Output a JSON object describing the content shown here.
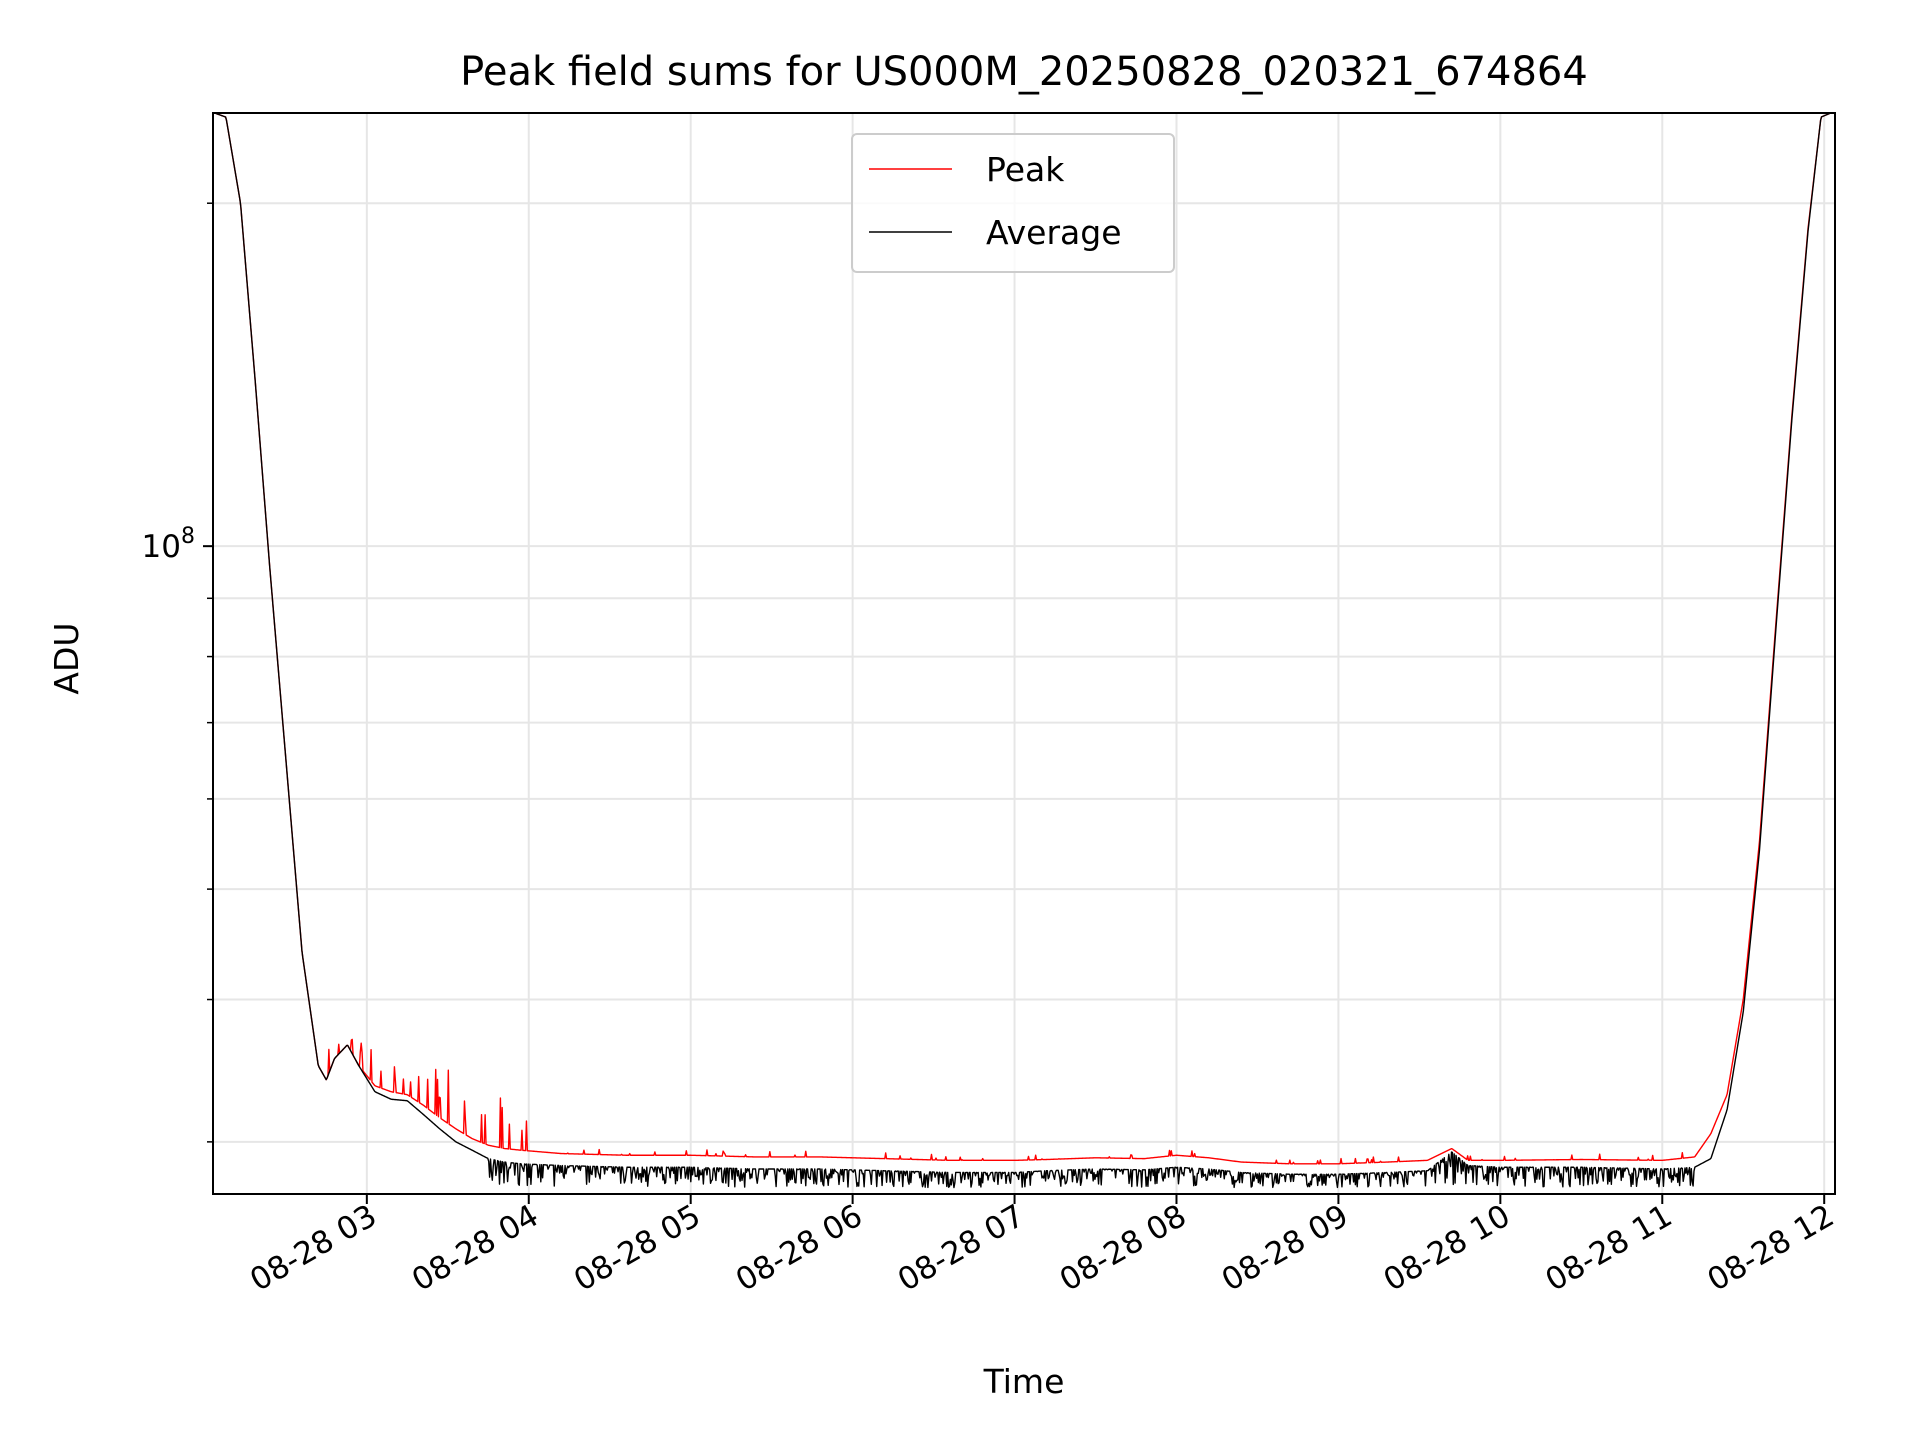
{
  "chart_data": {
    "type": "line",
    "title": "Peak field sums for US000M_20250828_020321_674864",
    "xlabel": "Time",
    "ylabel": "ADU",
    "yscale": "log",
    "y_tick_label": {
      "base": "10",
      "exp": "8"
    },
    "x_ticks": [
      "08-28 03",
      "08-28 04",
      "08-28 05",
      "08-28 06",
      "08-28 07",
      "08-28 08",
      "08-28 09",
      "08-28 10",
      "08-28 11",
      "08-28 12"
    ],
    "x_start": "2025-08-28 02:03",
    "x_end": "2025-08-28 12:02",
    "xlim": [
      "2025-08-28 02:03",
      "2025-08-28 12:04"
    ],
    "ylim": [
      27000000,
      240000000
    ],
    "grid": true,
    "legend_position": "upper center",
    "series": [
      {
        "name": "Peak",
        "color": "#ff0000",
        "x_hours": [
          2.06,
          2.13,
          2.22,
          2.31,
          2.4,
          2.5,
          2.6,
          2.7,
          2.75,
          2.8,
          2.88,
          2.95,
          3.05,
          3.15,
          3.25,
          3.35,
          3.45,
          3.55,
          3.65,
          3.75,
          3.85,
          3.95,
          4.2,
          4.6,
          5.0,
          5.4,
          5.8,
          6.2,
          6.6,
          7.0,
          7.2,
          7.5,
          7.8,
          8.0,
          8.2,
          8.4,
          8.7,
          9.0,
          9.3,
          9.55,
          9.7,
          9.8,
          10.0,
          10.5,
          11.0,
          11.2,
          11.3,
          11.4,
          11.5,
          11.6,
          11.7,
          11.8,
          11.9,
          11.98,
          12.04
        ],
        "values": [
          240000000,
          238000000,
          200000000,
          140000000,
          96000000,
          65000000,
          44000000,
          35000000,
          34000000,
          35500000,
          36500000,
          35000000,
          33600000,
          33200000,
          33000000,
          32300000,
          31500000,
          30800000,
          30200000,
          29800000,
          29600000,
          29500000,
          29300000,
          29200000,
          29200000,
          29100000,
          29100000,
          29000000,
          28900000,
          28900000,
          28950000,
          29050000,
          29000000,
          29200000,
          29050000,
          28800000,
          28700000,
          28700000,
          28800000,
          28900000,
          29600000,
          28900000,
          28900000,
          28950000,
          28900000,
          29100000,
          30500000,
          33000000,
          40000000,
          55000000,
          85000000,
          130000000,
          190000000,
          238000000,
          240000000
        ],
        "spikes": [
          {
            "x_range": [
              2.55,
              2.62
            ],
            "peak": 44000000
          },
          {
            "x_range": [
              2.72,
              3.05
            ],
            "peak": 37200000
          },
          {
            "x_range": [
              3.05,
              3.55
            ],
            "peak": 35000000
          },
          {
            "x_range": [
              3.55,
              4.0
            ],
            "peak": 33000000
          }
        ]
      },
      {
        "name": "Average",
        "color": "#000000",
        "x_hours": [
          2.06,
          2.13,
          2.22,
          2.31,
          2.4,
          2.5,
          2.6,
          2.7,
          2.75,
          2.8,
          2.88,
          2.95,
          3.05,
          3.15,
          3.25,
          3.35,
          3.45,
          3.55,
          3.65,
          3.75,
          3.85,
          3.95,
          4.2,
          4.6,
          5.0,
          5.4,
          5.8,
          6.2,
          6.6,
          7.0,
          7.2,
          7.5,
          7.8,
          8.0,
          8.2,
          8.4,
          8.7,
          9.0,
          9.3,
          9.55,
          9.7,
          9.8,
          10.0,
          10.5,
          11.0,
          11.2,
          11.3,
          11.4,
          11.5,
          11.6,
          11.7,
          11.8,
          11.9,
          11.98,
          12.04
        ],
        "values": [
          240000000,
          238000000,
          200000000,
          140000000,
          96000000,
          65000000,
          44000000,
          35000000,
          34000000,
          35500000,
          36500000,
          35000000,
          33200000,
          32700000,
          32600000,
          31700000,
          30800000,
          30000000,
          29500000,
          29000000,
          28800000,
          28700000,
          28600000,
          28500000,
          28500000,
          28400000,
          28400000,
          28300000,
          28200000,
          28200000,
          28300000,
          28400000,
          28350000,
          28500000,
          28400000,
          28200000,
          28100000,
          28100000,
          28200000,
          28300000,
          29400000,
          28600000,
          28500000,
          28500000,
          28400000,
          28500000,
          29000000,
          32000000,
          39000000,
          54000000,
          84000000,
          129000000,
          189000000,
          238000000,
          240000000
        ],
        "noise": {
          "x_range": [
            3.75,
            11.2
          ],
          "dip_min": 27200000
        }
      }
    ]
  }
}
